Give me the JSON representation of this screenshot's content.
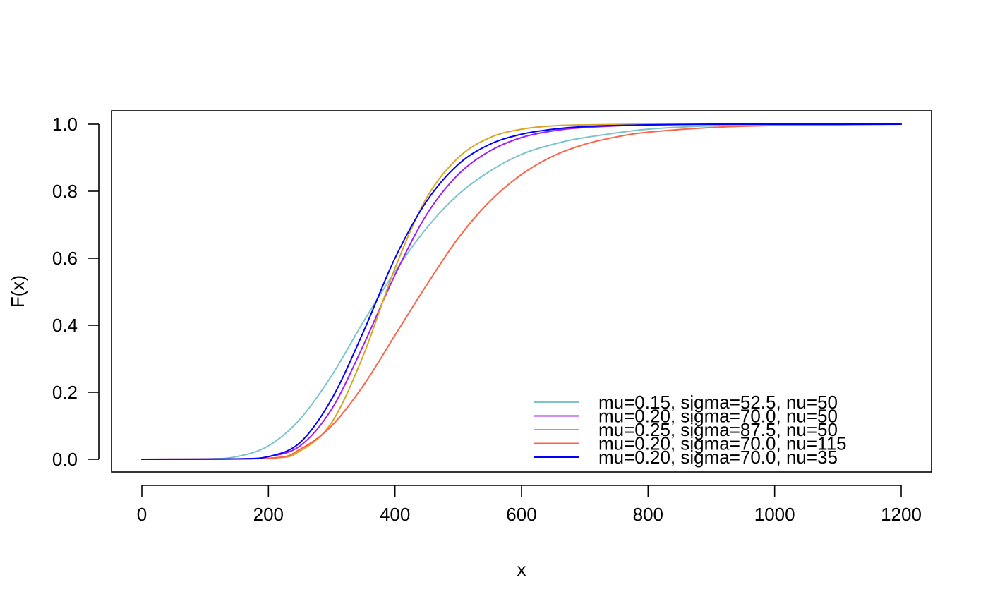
{
  "chart_data": {
    "type": "line",
    "title": "",
    "xlabel": "x",
    "ylabel": "F(x)",
    "xlim": [
      0,
      1200
    ],
    "ylim": [
      0,
      1
    ],
    "xticks": [
      0,
      200,
      400,
      600,
      800,
      1000,
      1200
    ],
    "xtick_labels": [
      "0",
      "200",
      "400",
      "600",
      "800",
      "1000",
      "1200"
    ],
    "yticks": [
      0,
      0.2,
      0.4,
      0.6,
      0.8,
      1.0
    ],
    "ytick_labels": [
      "0.0",
      "0.2",
      "0.4",
      "0.6",
      "0.8",
      "1.0"
    ],
    "grid": false,
    "legend_position": "bottom-right",
    "series": [
      {
        "name": "mu=0.15, sigma=52.5, nu=50",
        "color": "#7ac4cc",
        "x": [
          0,
          100,
          150,
          200,
          250,
          300,
          350,
          400,
          450,
          500,
          550,
          600,
          650,
          700,
          800,
          900,
          1000,
          1100,
          1200
        ],
        "y": [
          0,
          0.001,
          0.008,
          0.04,
          0.12,
          0.25,
          0.41,
          0.56,
          0.69,
          0.79,
          0.86,
          0.91,
          0.94,
          0.96,
          0.985,
          0.995,
          0.998,
          0.9995,
          1.0
        ]
      },
      {
        "name": "mu=0.20, sigma=70.0, nu=50",
        "color": "#a020f0",
        "x": [
          0,
          150,
          200,
          250,
          300,
          350,
          400,
          450,
          500,
          550,
          600,
          650,
          700,
          800,
          900,
          1000,
          1200
        ],
        "y": [
          0,
          0.001,
          0.008,
          0.04,
          0.15,
          0.34,
          0.55,
          0.73,
          0.85,
          0.92,
          0.96,
          0.98,
          0.99,
          0.998,
          0.9995,
          1.0,
          1.0
        ]
      },
      {
        "name": "mu=0.25, sigma=87.5, nu=50",
        "color": "#daa520",
        "x": [
          0,
          200,
          250,
          300,
          350,
          400,
          450,
          500,
          550,
          600,
          650,
          700,
          800,
          900,
          1000,
          1200
        ],
        "y": [
          0,
          0.003,
          0.025,
          0.11,
          0.31,
          0.57,
          0.78,
          0.9,
          0.96,
          0.985,
          0.995,
          0.998,
          1.0,
          1.0,
          1.0,
          1.0
        ]
      },
      {
        "name": "mu=0.20, sigma=70.0, nu=115",
        "color": "#ff6347",
        "x": [
          0,
          200,
          250,
          300,
          350,
          400,
          450,
          500,
          550,
          600,
          650,
          700,
          750,
          800,
          900,
          1000,
          1100,
          1200
        ],
        "y": [
          0,
          0.003,
          0.03,
          0.1,
          0.22,
          0.37,
          0.52,
          0.66,
          0.77,
          0.85,
          0.905,
          0.94,
          0.962,
          0.976,
          0.99,
          0.996,
          0.998,
          1.0
        ]
      },
      {
        "name": "mu=0.20, sigma=70.0, nu=35",
        "color": "#0000ff",
        "x": [
          0,
          150,
          200,
          250,
          300,
          350,
          400,
          450,
          500,
          550,
          600,
          650,
          700,
          800,
          900,
          1000,
          1200
        ],
        "y": [
          0,
          0.001,
          0.008,
          0.05,
          0.18,
          0.38,
          0.6,
          0.77,
          0.88,
          0.94,
          0.97,
          0.985,
          0.993,
          0.998,
          1.0,
          1.0,
          1.0
        ]
      }
    ]
  }
}
